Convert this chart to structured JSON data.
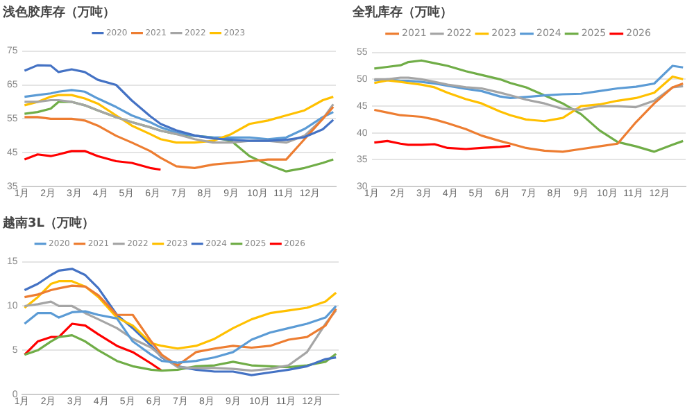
{
  "chart_data": [
    {
      "type": "line",
      "title": "浅色胶库存（万吨）",
      "legend": "top",
      "grid": "y",
      "marker": "none",
      "x": [
        1.1,
        1.6,
        2.1,
        2.4,
        2.9,
        3.4,
        3.9,
        4.6,
        5.2,
        5.9,
        6.3,
        6.9,
        7.6,
        8.3,
        9.0,
        9.7,
        10.4,
        11.1,
        11.8,
        12.5,
        12.9
      ],
      "xlim": [
        1,
        13
      ],
      "xticks": [
        {
          "value": 1,
          "label": "1月"
        },
        {
          "value": 2,
          "label": "2月"
        },
        {
          "value": 3,
          "label": "3月"
        },
        {
          "value": 4,
          "label": "4月"
        },
        {
          "value": 5,
          "label": "5月"
        },
        {
          "value": 6,
          "label": "6月"
        },
        {
          "value": 7,
          "label": "7月"
        },
        {
          "value": 8,
          "label": "8月"
        },
        {
          "value": 9,
          "label": "9月"
        },
        {
          "value": 10,
          "label": "10月"
        },
        {
          "value": 11,
          "label": "11月"
        },
        {
          "value": 12,
          "label": "12月"
        }
      ],
      "ylim": [
        35,
        75
      ],
      "yticks": [
        35,
        45,
        55,
        65,
        75
      ],
      "series": [
        {
          "name": "2020",
          "color": "#4472c4",
          "values": [
            69.2,
            70.8,
            70.7,
            68.8,
            69.6,
            68.8,
            66.5,
            65,
            60.4,
            55.8,
            53.5,
            51.6,
            50.1,
            49.2,
            48.8,
            48.5,
            48.5,
            48.8,
            49.6,
            51.9,
            54.7
          ]
        },
        {
          "name": "2021",
          "color": "#ed7d31",
          "values": [
            55.5,
            55.5,
            55,
            55,
            55,
            54.5,
            53,
            50,
            48,
            45.5,
            43.5,
            41,
            40.5,
            41.5,
            42,
            42.5,
            43,
            43,
            49,
            55,
            58.5
          ]
        },
        {
          "name": "2022",
          "color": "#a5a5a5",
          "values": [
            60,
            60,
            60.5,
            60.5,
            60,
            59,
            57.5,
            55.5,
            54,
            52.5,
            51.5,
            50.5,
            49,
            48,
            48,
            48.5,
            48.5,
            48,
            50,
            55,
            59.3
          ]
        },
        {
          "name": "2023",
          "color": "#ffc000",
          "values": [
            59,
            60,
            61.5,
            62,
            62,
            61,
            59.5,
            56,
            53,
            50.5,
            49,
            48,
            48,
            48.5,
            50.5,
            53.5,
            54.5,
            56,
            57.5,
            60.5,
            61.5
          ]
        },
        {
          "color": "#5b9bd5",
          "values": [
            61.5,
            62,
            62.5,
            63,
            63.5,
            63,
            61,
            58.5,
            56,
            54,
            52.5,
            51,
            50,
            49.5,
            49.5,
            49.5,
            49,
            49.5,
            52,
            55.5,
            57
          ]
        },
        {
          "color": "#70ad47",
          "values": [
            56.5,
            57,
            58,
            60,
            60,
            59,
            57.5,
            55.5,
            54,
            52.5,
            51.5,
            50.5,
            50,
            49.5,
            48.5,
            44,
            41.5,
            39.5,
            40.5,
            42,
            43
          ]
        },
        {
          "color": "#ff0000",
          "values": [
            43,
            44.5,
            44,
            44.5,
            45.5,
            45.5,
            44,
            42.5,
            42,
            40.5,
            40,
            null,
            null,
            null,
            null,
            null,
            null,
            null,
            null,
            null,
            null
          ]
        }
      ]
    },
    {
      "type": "line",
      "title": "全乳库存（万吨）",
      "legend": "top",
      "grid": "y",
      "marker": "none",
      "x": [
        1.1,
        1.6,
        2.1,
        2.4,
        2.9,
        3.4,
        3.9,
        4.6,
        5.2,
        5.9,
        6.3,
        6.9,
        7.6,
        8.3,
        9.0,
        9.7,
        10.4,
        11.1,
        11.8,
        12.5,
        12.9
      ],
      "xlim": [
        1,
        13
      ],
      "xticks": [
        {
          "value": 1,
          "label": "1月"
        },
        {
          "value": 2,
          "label": "2月"
        },
        {
          "value": 3,
          "label": "3月"
        },
        {
          "value": 4,
          "label": "4月"
        },
        {
          "value": 5,
          "label": "5月"
        },
        {
          "value": 6,
          "label": "6月"
        },
        {
          "value": 7,
          "label": "7月"
        },
        {
          "value": 8,
          "label": "8月"
        },
        {
          "value": 9,
          "label": "9月"
        },
        {
          "value": 10,
          "label": "10月"
        },
        {
          "value": 11,
          "label": "11月"
        },
        {
          "value": 12,
          "label": "12月"
        }
      ],
      "ylim": [
        30,
        55
      ],
      "yticks": [
        30,
        35,
        40,
        45,
        50,
        55
      ],
      "series": [
        {
          "name": "2021",
          "color": "#ed7d31",
          "values": [
            44.3,
            43.8,
            43.3,
            43.2,
            43,
            42.5,
            41.8,
            40.7,
            39.5,
            38.5,
            38,
            37.2,
            36.7,
            36.5,
            37,
            37.5,
            38,
            42,
            45.5,
            48.5,
            49.2
          ]
        },
        {
          "name": "2022",
          "color": "#a5a5a5",
          "values": [
            50,
            50,
            50.3,
            50.3,
            50,
            49.5,
            49,
            48.5,
            48.3,
            47.5,
            47,
            46.2,
            45.5,
            44.5,
            44.3,
            45,
            45,
            44.8,
            46,
            48.5,
            48.7
          ]
        },
        {
          "name": "2023",
          "color": "#ffc000",
          "values": [
            49.3,
            49.8,
            49.5,
            49.3,
            49,
            48.5,
            47.5,
            46.3,
            45.5,
            44,
            43.3,
            42.5,
            42.2,
            42.8,
            45,
            45.3,
            46,
            46.5,
            47.5,
            50.5,
            50
          ]
        },
        {
          "name": "2024",
          "color": "#5b9bd5",
          "values": [
            49.8,
            50,
            49.7,
            49.7,
            49.5,
            49.2,
            48.8,
            48.2,
            47.8,
            46.8,
            46.5,
            46.7,
            47,
            47.2,
            47.3,
            47.8,
            48.3,
            48.6,
            49.2,
            52.5,
            52.2
          ]
        },
        {
          "name": "2025",
          "color": "#70ad47",
          "values": [
            52,
            52.3,
            52.6,
            53.2,
            53.5,
            53,
            52.5,
            51.5,
            50.8,
            50,
            49.3,
            48.5,
            47,
            45.5,
            43.5,
            40.5,
            38.3,
            37.5,
            36.5,
            37.8,
            38.5
          ]
        },
        {
          "name": "2026",
          "color": "#ff0000",
          "values": [
            38.2,
            38.5,
            38,
            37.8,
            37.8,
            37.9,
            37.2,
            37,
            37.2,
            37.4,
            37.6,
            null,
            null,
            null,
            null,
            null,
            null,
            null,
            null,
            null,
            null
          ]
        }
      ]
    },
    {
      "type": "line",
      "title": "越南3L（万吨）",
      "legend": "top",
      "grid": "y",
      "marker": "none",
      "x": [
        1.1,
        1.6,
        2.1,
        2.4,
        2.9,
        3.4,
        3.9,
        4.6,
        5.2,
        5.9,
        6.3,
        6.9,
        7.6,
        8.3,
        9.0,
        9.7,
        10.4,
        11.1,
        11.8,
        12.5,
        12.9
      ],
      "xlim": [
        1,
        13
      ],
      "xticks": [
        {
          "value": 1,
          "label": "1月"
        },
        {
          "value": 2,
          "label": "2月"
        },
        {
          "value": 3,
          "label": "3月"
        },
        {
          "value": 4,
          "label": "4月"
        },
        {
          "value": 5,
          "label": "5月"
        },
        {
          "value": 6,
          "label": "6月"
        },
        {
          "value": 7,
          "label": "7月"
        },
        {
          "value": 8,
          "label": "8月"
        },
        {
          "value": 9,
          "label": "9月"
        },
        {
          "value": 10,
          "label": "10月"
        },
        {
          "value": 11,
          "label": "11月"
        },
        {
          "value": 12,
          "label": "12月"
        }
      ],
      "ylim": [
        0,
        15
      ],
      "yticks": [
        0,
        5,
        10,
        15
      ],
      "series": [
        {
          "name": "2020",
          "color": "#5b9bd5",
          "values": [
            8,
            9.2,
            9.2,
            8.7,
            9.3,
            9.4,
            9,
            8.6,
            6,
            4.5,
            3.8,
            3.6,
            3.8,
            4.2,
            4.8,
            6.2,
            7,
            7.5,
            8,
            8.7,
            10
          ]
        },
        {
          "name": "2021",
          "color": "#ed7d31",
          "values": [
            11,
            11.3,
            11.8,
            12,
            12.3,
            12.2,
            11.2,
            9,
            9,
            6,
            4.5,
            3.3,
            4.8,
            5.2,
            5.5,
            5.3,
            5.5,
            6.2,
            6.5,
            7.8,
            9.7
          ]
        },
        {
          "name": "2022",
          "color": "#a5a5a5",
          "values": [
            10,
            10.2,
            10.5,
            10,
            10,
            9.2,
            8.5,
            7.5,
            6.3,
            5.3,
            4.3,
            3.1,
            3,
            3,
            2.9,
            2.7,
            2.9,
            3.3,
            4.8,
            8,
            9.5
          ]
        },
        {
          "name": "2023",
          "color": "#ffc000",
          "values": [
            9.8,
            11,
            12.5,
            12.8,
            12.8,
            12.2,
            11,
            8.7,
            7.8,
            5.8,
            5.5,
            5.2,
            5.5,
            6.3,
            7.5,
            8.5,
            9.2,
            9.5,
            9.8,
            10.5,
            11.5
          ]
        },
        {
          "name": "2024",
          "color": "#4472c4",
          "values": [
            11.8,
            12.5,
            13.5,
            14,
            14.2,
            13.5,
            12,
            9,
            7.5,
            5.5,
            4.2,
            3.2,
            2.8,
            2.6,
            2.6,
            2.2,
            2.5,
            2.8,
            3.2,
            4,
            4.2
          ]
        },
        {
          "name": "2025",
          "color": "#70ad47",
          "values": [
            4.5,
            5,
            6,
            6.5,
            6.7,
            6,
            5,
            3.8,
            3.2,
            2.8,
            2.7,
            2.8,
            3.2,
            3.3,
            3.7,
            3.3,
            3.2,
            3.1,
            3.3,
            3.7,
            4.6
          ]
        },
        {
          "name": "2026",
          "color": "#ff0000",
          "values": [
            4.5,
            6,
            6.5,
            6.5,
            8,
            7.8,
            6.8,
            5.5,
            4.8,
            3.5,
            2.7,
            null,
            null,
            null,
            null,
            null,
            null,
            null,
            null,
            null,
            null
          ]
        }
      ]
    }
  ]
}
